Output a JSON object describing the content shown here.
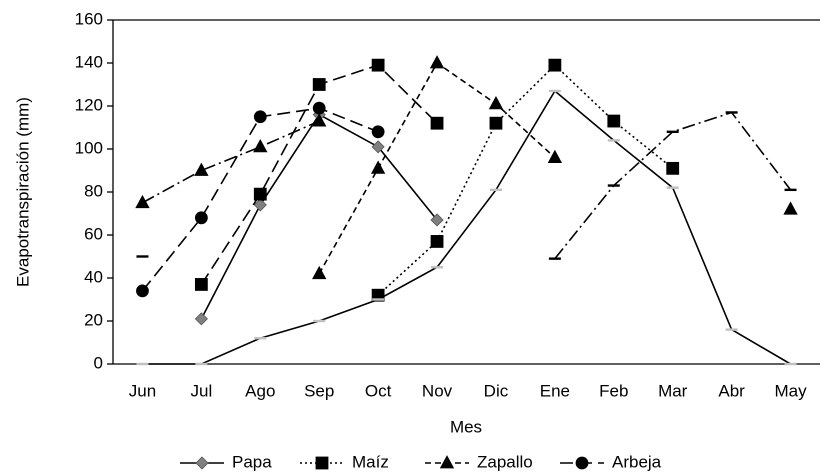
{
  "chart_data": {
    "type": "line",
    "x_label": "Mes",
    "y_label": "Evapotranspiración (mm)",
    "categories": [
      "Jun",
      "Jul",
      "Ago",
      "Sep",
      "Oct",
      "Nov",
      "Dic",
      "Ene",
      "Feb",
      "Mar",
      "Abr",
      "May"
    ],
    "ylim": [
      0,
      160
    ],
    "yticks": [
      0,
      20,
      40,
      60,
      80,
      100,
      120,
      140,
      160
    ],
    "grid": false,
    "legend": "bottom",
    "series": [
      {
        "name": "Papa",
        "color": "#000000",
        "marker": "diamond",
        "marker_color": "#808080",
        "line_style": "solid",
        "values": [
          null,
          21,
          74,
          116,
          101,
          67,
          null,
          null,
          null,
          null,
          null,
          null
        ]
      },
      {
        "name": "Maíz",
        "color": "#000000",
        "marker": "square",
        "marker_color": "#000000",
        "line_style": "dot",
        "values": [
          null,
          null,
          null,
          null,
          32,
          57,
          112,
          139,
          113,
          91,
          null,
          null
        ]
      },
      {
        "name": "Zapallo",
        "color": "#000000",
        "marker": "triangle",
        "marker_color": "#000000",
        "line_style": "dash",
        "values": [
          null,
          null,
          null,
          42,
          91,
          140,
          121,
          96,
          null,
          null,
          null,
          null
        ]
      },
      {
        "name": "Arbeja",
        "color": "#000000",
        "marker": "circle",
        "marker_color": "#000000",
        "line_style": "longdash",
        "values": [
          34,
          68,
          115,
          119,
          108,
          null,
          null,
          null,
          null,
          null,
          null,
          null
        ]
      },
      {
        "color": "#000000",
        "marker": "square",
        "marker_color": "#000000",
        "line_style": "longdash",
        "values": [
          null,
          37,
          79,
          130,
          139,
          112,
          null,
          null,
          null,
          null,
          null,
          null
        ]
      },
      {
        "color": "#000000",
        "marker": "triangle",
        "marker_color": "#000000",
        "line_style": "dashdot",
        "values": [
          75,
          90,
          101,
          113,
          null,
          null,
          null,
          null,
          null,
          null,
          null,
          72
        ]
      },
      {
        "color": "#000000",
        "marker": "dash",
        "marker_color": "#000000",
        "line_style": "dashdot",
        "values": [
          null,
          null,
          null,
          null,
          null,
          null,
          null,
          49,
          83,
          108,
          117,
          81
        ]
      },
      {
        "color": "#000000",
        "marker": "dash",
        "marker_color": "#c0c0c0",
        "line_style": "solid",
        "values": [
          0,
          0,
          12,
          20,
          30,
          45,
          81,
          127,
          104,
          82,
          16,
          0
        ]
      },
      {
        "color": "#000000",
        "marker": "dash",
        "marker_color": "#000000",
        "line_style": "longdash",
        "values": [
          50,
          null,
          null,
          null,
          null,
          null,
          null,
          null,
          null,
          null,
          null,
          null
        ]
      }
    ]
  }
}
